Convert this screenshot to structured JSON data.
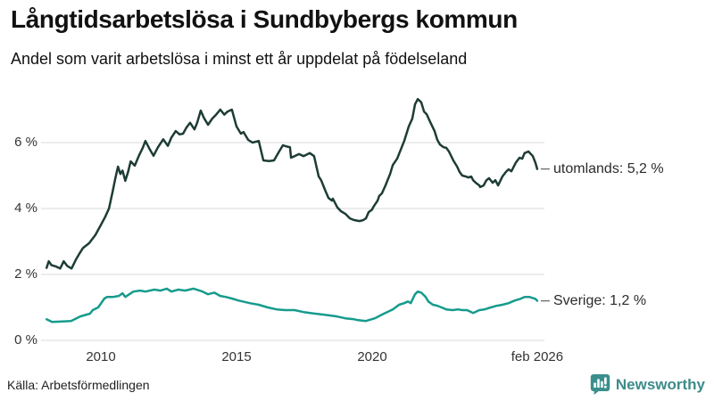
{
  "header": {
    "title": "Långtidsarbetslösa i Sundbybergs kommun",
    "subtitle": "Andel som varit arbetslösa i minst ett år uppdelat på födelseland"
  },
  "footer": {
    "source": "Källa: Arbetsförmedlingen",
    "brand": "Newsworthy",
    "brand_color": "#3e8c8a"
  },
  "chart_data": {
    "type": "line",
    "title": "Långtidsarbetslösa i Sundbybergs kommun",
    "subtitle": "Andel som varit arbetslösa i minst ett år uppdelat på födelseland",
    "unit": "%",
    "grid": "horizontal",
    "grid_color": "#d9d9d9",
    "connector_color": "#777777",
    "x_axis": {
      "range": [
        2008.0,
        2026.083
      ],
      "ticks": [
        {
          "label": "2010",
          "year": 2010
        },
        {
          "label": "2015",
          "year": 2015
        },
        {
          "label": "2020",
          "year": 2020
        },
        {
          "label": "feb 2026",
          "year": 2026.083
        }
      ]
    },
    "y_axis": {
      "range": [
        0,
        7.6
      ],
      "ticks": [
        {
          "label": "0 %",
          "value": 0
        },
        {
          "label": "2 %",
          "value": 2
        },
        {
          "label": "4 %",
          "value": 4
        },
        {
          "label": "6 %",
          "value": 6
        }
      ]
    },
    "legend_position": "line-end-labels",
    "series": [
      {
        "name": "utomlands",
        "end_label": "utomlands: 5,2 %",
        "end_value": "5,2 %",
        "color": "#1e3c36",
        "points": [
          [
            2008.0,
            2.2
          ],
          [
            2008.08,
            2.4
          ],
          [
            2008.18,
            2.28
          ],
          [
            2008.35,
            2.24
          ],
          [
            2008.5,
            2.18
          ],
          [
            2008.63,
            2.4
          ],
          [
            2008.76,
            2.26
          ],
          [
            2008.92,
            2.18
          ],
          [
            2009.08,
            2.45
          ],
          [
            2009.2,
            2.62
          ],
          [
            2009.34,
            2.8
          ],
          [
            2009.57,
            2.95
          ],
          [
            2009.8,
            3.2
          ],
          [
            2010.0,
            3.5
          ],
          [
            2010.16,
            3.75
          ],
          [
            2010.3,
            4.0
          ],
          [
            2010.43,
            4.5
          ],
          [
            2010.53,
            4.9
          ],
          [
            2010.63,
            5.27
          ],
          [
            2010.72,
            5.05
          ],
          [
            2010.8,
            5.15
          ],
          [
            2010.9,
            4.84
          ],
          [
            2011.0,
            5.1
          ],
          [
            2011.1,
            5.43
          ],
          [
            2011.25,
            5.3
          ],
          [
            2011.4,
            5.6
          ],
          [
            2011.55,
            5.85
          ],
          [
            2011.64,
            6.05
          ],
          [
            2011.8,
            5.8
          ],
          [
            2011.94,
            5.6
          ],
          [
            2012.1,
            5.85
          ],
          [
            2012.3,
            6.1
          ],
          [
            2012.47,
            5.9
          ],
          [
            2012.6,
            6.15
          ],
          [
            2012.76,
            6.35
          ],
          [
            2012.9,
            6.25
          ],
          [
            2013.03,
            6.27
          ],
          [
            2013.15,
            6.45
          ],
          [
            2013.29,
            6.6
          ],
          [
            2013.45,
            6.4
          ],
          [
            2013.55,
            6.6
          ],
          [
            2013.68,
            6.97
          ],
          [
            2013.8,
            6.75
          ],
          [
            2013.95,
            6.54
          ],
          [
            2014.11,
            6.73
          ],
          [
            2014.25,
            6.85
          ],
          [
            2014.4,
            7.0
          ],
          [
            2014.55,
            6.85
          ],
          [
            2014.67,
            6.94
          ],
          [
            2014.83,
            7.0
          ],
          [
            2015.0,
            6.49
          ],
          [
            2015.16,
            6.27
          ],
          [
            2015.26,
            6.32
          ],
          [
            2015.43,
            6.08
          ],
          [
            2015.59,
            6.0
          ],
          [
            2015.82,
            6.05
          ],
          [
            2015.99,
            5.46
          ],
          [
            2016.2,
            5.44
          ],
          [
            2016.38,
            5.46
          ],
          [
            2016.55,
            5.7
          ],
          [
            2016.71,
            5.92
          ],
          [
            2016.85,
            5.88
          ],
          [
            2016.97,
            5.86
          ],
          [
            2017.01,
            5.54
          ],
          [
            2017.14,
            5.59
          ],
          [
            2017.3,
            5.65
          ],
          [
            2017.47,
            5.59
          ],
          [
            2017.7,
            5.68
          ],
          [
            2017.86,
            5.59
          ],
          [
            2018.03,
            4.97
          ],
          [
            2018.12,
            4.86
          ],
          [
            2018.29,
            4.51
          ],
          [
            2018.39,
            4.32
          ],
          [
            2018.52,
            4.24
          ],
          [
            2018.55,
            4.3
          ],
          [
            2018.72,
            4.03
          ],
          [
            2018.85,
            3.92
          ],
          [
            2019.01,
            3.84
          ],
          [
            2019.18,
            3.7
          ],
          [
            2019.34,
            3.65
          ],
          [
            2019.54,
            3.62
          ],
          [
            2019.67,
            3.65
          ],
          [
            2019.77,
            3.7
          ],
          [
            2019.87,
            3.89
          ],
          [
            2020.0,
            3.97
          ],
          [
            2020.03,
            4.03
          ],
          [
            2020.2,
            4.24
          ],
          [
            2020.26,
            4.38
          ],
          [
            2020.36,
            4.46
          ],
          [
            2020.49,
            4.7
          ],
          [
            2020.66,
            5.05
          ],
          [
            2020.76,
            5.32
          ],
          [
            2020.92,
            5.51
          ],
          [
            2021.18,
            6.05
          ],
          [
            2021.35,
            6.49
          ],
          [
            2021.48,
            6.73
          ],
          [
            2021.58,
            7.16
          ],
          [
            2021.68,
            7.32
          ],
          [
            2021.81,
            7.22
          ],
          [
            2021.91,
            6.94
          ],
          [
            2022.01,
            6.86
          ],
          [
            2022.14,
            6.62
          ],
          [
            2022.3,
            6.35
          ],
          [
            2022.4,
            6.08
          ],
          [
            2022.5,
            5.94
          ],
          [
            2022.63,
            5.86
          ],
          [
            2022.73,
            5.84
          ],
          [
            2022.83,
            5.73
          ],
          [
            2022.99,
            5.46
          ],
          [
            2023.13,
            5.27
          ],
          [
            2023.22,
            5.11
          ],
          [
            2023.32,
            5.0
          ],
          [
            2023.45,
            4.97
          ],
          [
            2023.55,
            4.94
          ],
          [
            2023.65,
            4.97
          ],
          [
            2023.72,
            4.86
          ],
          [
            2023.82,
            4.78
          ],
          [
            2023.95,
            4.7
          ],
          [
            2023.98,
            4.65
          ],
          [
            2024.11,
            4.7
          ],
          [
            2024.21,
            4.86
          ],
          [
            2024.31,
            4.92
          ],
          [
            2024.44,
            4.78
          ],
          [
            2024.54,
            4.86
          ],
          [
            2024.64,
            4.7
          ],
          [
            2024.8,
            4.97
          ],
          [
            2024.93,
            5.11
          ],
          [
            2025.03,
            5.19
          ],
          [
            2025.13,
            5.13
          ],
          [
            2025.3,
            5.4
          ],
          [
            2025.43,
            5.54
          ],
          [
            2025.53,
            5.51
          ],
          [
            2025.62,
            5.68
          ],
          [
            2025.76,
            5.73
          ],
          [
            2025.92,
            5.59
          ],
          [
            2026.02,
            5.38
          ],
          [
            2026.083,
            5.2
          ]
        ]
      },
      {
        "name": "Sverige",
        "end_label": "Sverige: 1,2 %",
        "end_value": "1,2 %",
        "color": "#169b8d",
        "points": [
          [
            2008.0,
            0.64
          ],
          [
            2008.2,
            0.56
          ],
          [
            2008.5,
            0.57
          ],
          [
            2008.9,
            0.59
          ],
          [
            2009.25,
            0.73
          ],
          [
            2009.6,
            0.81
          ],
          [
            2009.7,
            0.92
          ],
          [
            2009.9,
            1.0
          ],
          [
            2010.13,
            1.27
          ],
          [
            2010.23,
            1.32
          ],
          [
            2010.46,
            1.32
          ],
          [
            2010.66,
            1.35
          ],
          [
            2010.8,
            1.43
          ],
          [
            2010.9,
            1.32
          ],
          [
            2011.2,
            1.48
          ],
          [
            2011.45,
            1.51
          ],
          [
            2011.64,
            1.48
          ],
          [
            2011.97,
            1.54
          ],
          [
            2012.2,
            1.51
          ],
          [
            2012.43,
            1.57
          ],
          [
            2012.6,
            1.48
          ],
          [
            2012.86,
            1.54
          ],
          [
            2013.1,
            1.51
          ],
          [
            2013.42,
            1.57
          ],
          [
            2013.75,
            1.48
          ],
          [
            2013.95,
            1.4
          ],
          [
            2014.18,
            1.45
          ],
          [
            2014.4,
            1.35
          ],
          [
            2014.6,
            1.32
          ],
          [
            2014.83,
            1.27
          ],
          [
            2015.07,
            1.21
          ],
          [
            2015.49,
            1.13
          ],
          [
            2015.82,
            1.08
          ],
          [
            2016.15,
            1.0
          ],
          [
            2016.48,
            0.94
          ],
          [
            2016.8,
            0.92
          ],
          [
            2017.14,
            0.92
          ],
          [
            2017.47,
            0.86
          ],
          [
            2017.9,
            0.81
          ],
          [
            2018.22,
            0.78
          ],
          [
            2018.68,
            0.73
          ],
          [
            2019.01,
            0.67
          ],
          [
            2019.34,
            0.64
          ],
          [
            2019.44,
            0.62
          ],
          [
            2019.77,
            0.59
          ],
          [
            2020.1,
            0.67
          ],
          [
            2020.43,
            0.81
          ],
          [
            2020.76,
            0.94
          ],
          [
            2020.99,
            1.08
          ],
          [
            2021.18,
            1.13
          ],
          [
            2021.32,
            1.18
          ],
          [
            2021.42,
            1.13
          ],
          [
            2021.58,
            1.4
          ],
          [
            2021.68,
            1.48
          ],
          [
            2021.81,
            1.45
          ],
          [
            2021.97,
            1.32
          ],
          [
            2022.07,
            1.18
          ],
          [
            2022.24,
            1.08
          ],
          [
            2022.4,
            1.05
          ],
          [
            2022.56,
            1.0
          ],
          [
            2022.73,
            0.94
          ],
          [
            2022.96,
            0.92
          ],
          [
            2023.16,
            0.94
          ],
          [
            2023.32,
            0.92
          ],
          [
            2023.49,
            0.92
          ],
          [
            2023.65,
            0.86
          ],
          [
            2023.72,
            0.83
          ],
          [
            2023.95,
            0.92
          ],
          [
            2024.14,
            0.94
          ],
          [
            2024.37,
            1.0
          ],
          [
            2024.6,
            1.05
          ],
          [
            2024.8,
            1.08
          ],
          [
            2025.03,
            1.13
          ],
          [
            2025.26,
            1.21
          ],
          [
            2025.46,
            1.26
          ],
          [
            2025.62,
            1.32
          ],
          [
            2025.79,
            1.32
          ],
          [
            2026.02,
            1.26
          ],
          [
            2026.083,
            1.2
          ]
        ]
      }
    ]
  }
}
